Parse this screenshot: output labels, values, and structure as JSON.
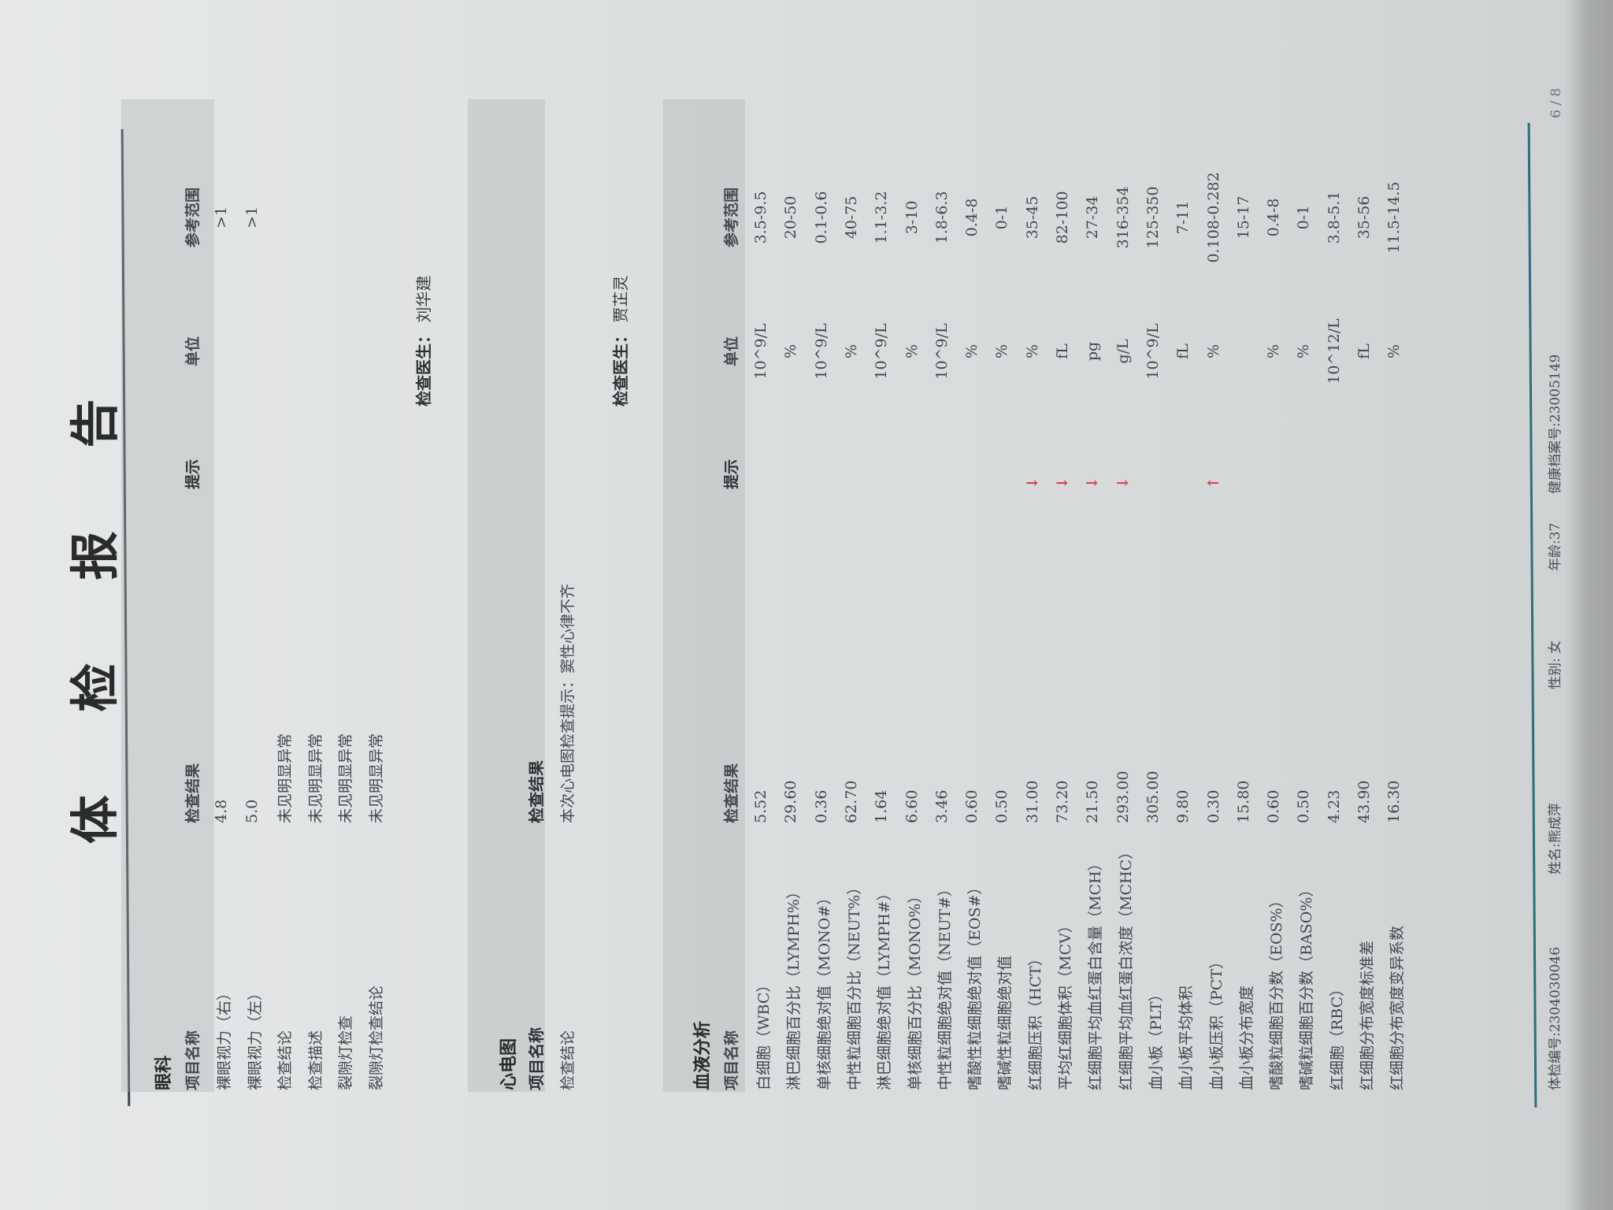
{
  "title": "体 检 报 告",
  "columns": {
    "name": "项目名称",
    "result": "检查结果",
    "flag": "提示",
    "unit": "单位",
    "range": "参考范围"
  },
  "eye": {
    "title": "眼科",
    "rows": [
      {
        "name": "裸眼视力（右）",
        "result": "4.8",
        "flag": "",
        "unit": "",
        "range": ">1"
      },
      {
        "name": "裸眼视力（左）",
        "result": "5.0",
        "flag": "",
        "unit": "",
        "range": ">1"
      },
      {
        "name": "检查结论",
        "result": "未见明显异常",
        "flag": "",
        "unit": "",
        "range": ""
      },
      {
        "name": "检查描述",
        "result": "未见明显异常",
        "flag": "",
        "unit": "",
        "range": ""
      },
      {
        "name": "裂隙灯检查",
        "result": "未见明显异常",
        "flag": "",
        "unit": "",
        "range": ""
      },
      {
        "name": "裂隙灯检查结论",
        "result": "未见明显异常",
        "flag": "",
        "unit": "",
        "range": ""
      }
    ],
    "doctor_label": "检查医生：",
    "doctor": "刘华建"
  },
  "ecg": {
    "title": "心电图",
    "rows": [
      {
        "name": "检查结论",
        "result": "本次心电图检查提示：窦性心律不齐"
      }
    ],
    "doctor_label": "检查医生：",
    "doctor": "贾芷灵"
  },
  "blood": {
    "title": "血液分析",
    "flag_color": "#d0455a",
    "rows": [
      {
        "name": "白细胞（WBC）",
        "result": "5.52",
        "flag": "",
        "unit": "10^9/L",
        "range": "3.5-9.5"
      },
      {
        "name": "淋巴细胞百分比（LYMPH%）",
        "result": "29.60",
        "flag": "",
        "unit": "%",
        "range": "20-50"
      },
      {
        "name": "单核细胞绝对值（MONO#）",
        "result": "0.36",
        "flag": "",
        "unit": "10^9/L",
        "range": "0.1-0.6"
      },
      {
        "name": "中性粒细胞百分比（NEUT%）",
        "result": "62.70",
        "flag": "",
        "unit": "%",
        "range": "40-75"
      },
      {
        "name": "淋巴细胞绝对值（LYMPH#）",
        "result": "1.64",
        "flag": "",
        "unit": "10^9/L",
        "range": "1.1-3.2"
      },
      {
        "name": "单核细胞百分比（MONO%）",
        "result": "6.60",
        "flag": "",
        "unit": "%",
        "range": "3-10"
      },
      {
        "name": "中性粒细胞绝对值（NEUT#）",
        "result": "3.46",
        "flag": "",
        "unit": "10^9/L",
        "range": "1.8-6.3"
      },
      {
        "name": "嗜酸性粒细胞绝对值（EOS#）",
        "result": "0.60",
        "flag": "",
        "unit": "%",
        "range": "0.4-8"
      },
      {
        "name": "嗜碱性粒细胞绝对值",
        "result": "0.50",
        "flag": "",
        "unit": "%",
        "range": "0-1"
      },
      {
        "name": "红细胞压积（HCT）",
        "result": "31.00",
        "flag": "↓",
        "unit": "%",
        "range": "35-45"
      },
      {
        "name": "平均红细胞体积（MCV）",
        "result": "73.20",
        "flag": "↓",
        "unit": "fL",
        "range": "82-100"
      },
      {
        "name": "红细胞平均血红蛋白含量（MCH）",
        "result": "21.50",
        "flag": "↓",
        "unit": "pg",
        "range": "27-34"
      },
      {
        "name": "红细胞平均血红蛋白浓度（MCHC）",
        "result": "293.00",
        "flag": "↓",
        "unit": "g/L",
        "range": "316-354"
      },
      {
        "name": "血小板（PLT）",
        "result": "305.00",
        "flag": "",
        "unit": "10^9/L",
        "range": "125-350"
      },
      {
        "name": "血小板平均体积",
        "result": "9.80",
        "flag": "",
        "unit": "fL",
        "range": "7-11"
      },
      {
        "name": "血小板压积（PCT）",
        "result": "0.30",
        "flag": "↑",
        "unit": "%",
        "range": "0.108-0.282"
      },
      {
        "name": "血小板分布宽度",
        "result": "15.80",
        "flag": "",
        "unit": "",
        "range": "15-17"
      },
      {
        "name": "嗜酸粒细胞百分数（EOS%）",
        "result": "0.60",
        "flag": "",
        "unit": "%",
        "range": "0.4-8"
      },
      {
        "name": "嗜碱粒细胞百分数（BASO%）",
        "result": "0.50",
        "flag": "",
        "unit": "%",
        "range": "0-1"
      },
      {
        "name": "红细胞（RBC）",
        "result": "4.23",
        "flag": "",
        "unit": "10^12/L",
        "range": "3.8-5.1"
      },
      {
        "name": "红细胞分布宽度标准差",
        "result": "43.90",
        "flag": "",
        "unit": "fL",
        "range": "35-56"
      },
      {
        "name": "红细胞分布宽度变异系数",
        "result": "16.30",
        "flag": "",
        "unit": "%",
        "range": "11.5-14.5"
      }
    ]
  },
  "footer": {
    "exam_no": "体检编号:2304030046",
    "name": "姓名:熊成萍",
    "sex": "性别: 女",
    "age": "年龄:37",
    "health_no": "健康档案号:23005149",
    "page": "6 / 8"
  }
}
